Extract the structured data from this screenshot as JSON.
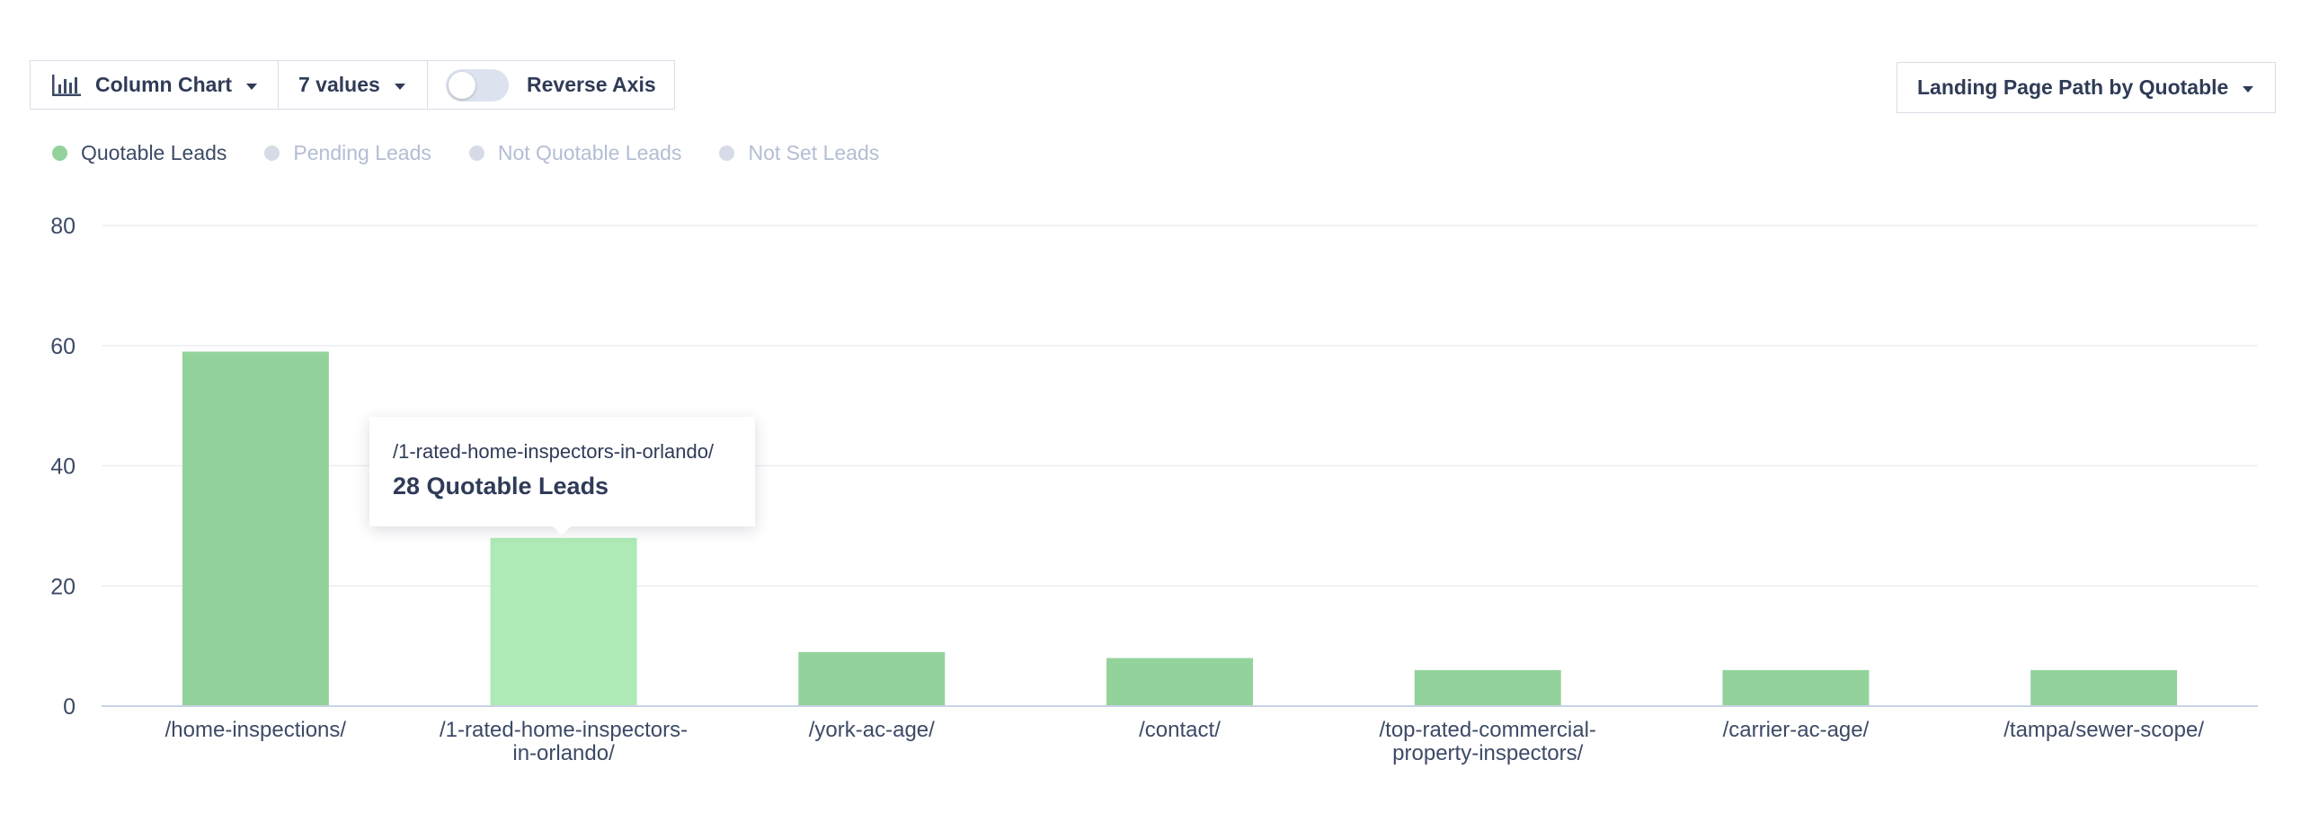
{
  "toolbar": {
    "chart_type": {
      "label": "Column Chart",
      "icon": "bar-chart-icon"
    },
    "values_select": {
      "label": "7 values"
    },
    "reverse_axis": {
      "label": "Reverse Axis",
      "enabled": false
    },
    "group_by": {
      "label": "Landing Page Path by Quotable"
    }
  },
  "legend": [
    {
      "label": "Quotable Leads",
      "color": "#93d39b",
      "active": true
    },
    {
      "label": "Pending Leads",
      "color": "#d6dbe7",
      "active": false
    },
    {
      "label": "Not Quotable Leads",
      "color": "#d6dbe7",
      "active": false
    },
    {
      "label": "Not Set Leads",
      "color": "#d6dbe7",
      "active": false
    }
  ],
  "chart_data": {
    "type": "bar",
    "categories": [
      "/home-inspections/",
      "/1-rated-home-inspectors-in-orlando/",
      "/york-ac-age/",
      "/contact/",
      "/top-rated-commercial-property-inspectors/",
      "/carrier-ac-age/",
      "/tampa/sewer-scope/"
    ],
    "category_label_lines": [
      [
        "/home-inspections/"
      ],
      [
        "/1-rated-home-inspectors-",
        "in-orlando/"
      ],
      [
        "/york-ac-age/"
      ],
      [
        "/contact/"
      ],
      [
        "/top-rated-commercial-",
        "property-inspectors/"
      ],
      [
        "/carrier-ac-age/"
      ],
      [
        "/tampa/sewer-scope/"
      ]
    ],
    "series": [
      {
        "name": "Quotable Leads",
        "values": [
          59,
          28,
          9,
          8,
          6,
          6,
          6
        ]
      }
    ],
    "ylim": [
      0,
      80
    ],
    "yticks": [
      0,
      20,
      40,
      60,
      80
    ],
    "grid": true,
    "highlighted_index": 1,
    "colors": {
      "bar": "#93d39b",
      "bar_highlight": "#aeeab5"
    }
  },
  "tooltip": {
    "path": "/1-rated-home-inspectors-in-orlando/",
    "value_text": "28 Quotable Leads"
  }
}
